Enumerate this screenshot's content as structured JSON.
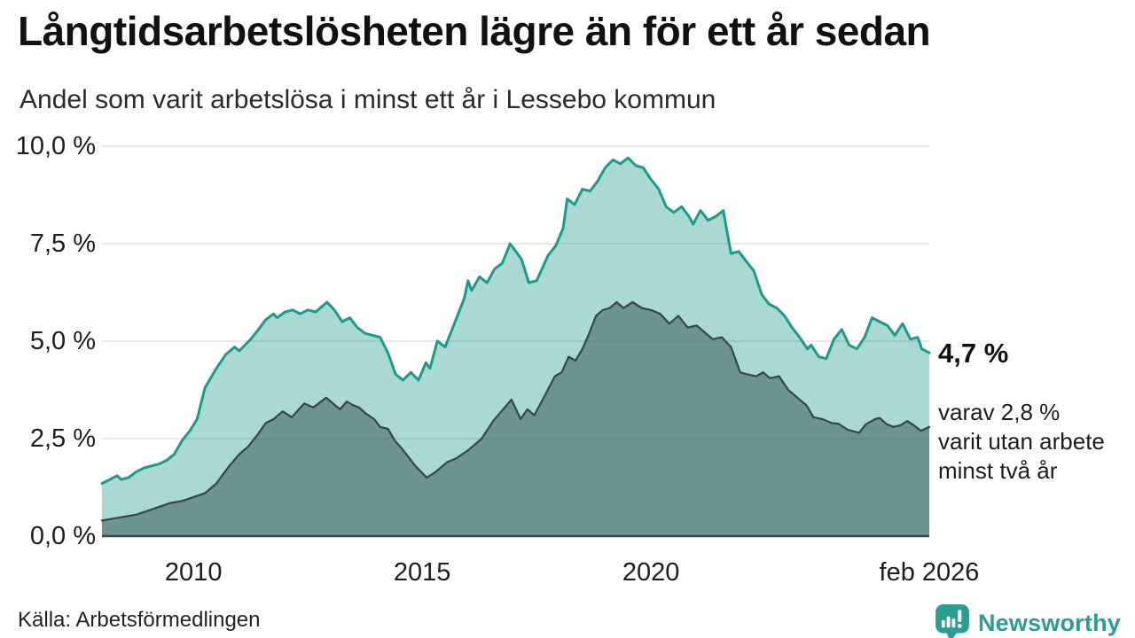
{
  "header": {
    "title": "Långtidsarbetslösheten lägre än för ett år sedan",
    "subtitle": "Andel som varit arbetslösa i minst ett år i Lessebo kommun"
  },
  "chart_data": {
    "type": "area",
    "title": "Långtidsarbetslösheten lägre än för ett år sedan",
    "subtitle": "Andel som varit arbetslösa i minst ett år i Lessebo kommun",
    "x_unit": "decimal_year",
    "x_range": [
      2008.0,
      2026.083
    ],
    "ylim": [
      0,
      10
    ],
    "grid": true,
    "legend_position": "none",
    "grid_color": "#e0e0e4",
    "axis_line_color": "#3a464c",
    "y_ticks": [
      {
        "value": 0,
        "label": "0,0 %"
      },
      {
        "value": 2.5,
        "label": "2,5 %"
      },
      {
        "value": 5,
        "label": "5,0 %"
      },
      {
        "value": 7.5,
        "label": "7,5 %"
      },
      {
        "value": 10,
        "label": "10,0 %"
      }
    ],
    "x_ticks": [
      {
        "value": 2010,
        "label": "2010"
      },
      {
        "value": 2015,
        "label": "2015"
      },
      {
        "value": 2020,
        "label": "2020"
      },
      {
        "value": 2026.083,
        "label": "feb 2026"
      }
    ],
    "series": [
      {
        "name": "Arbetslösa minst ett år",
        "stroke": "#1d9a8b",
        "stroke_width": 3,
        "fill": "rgba(42,157,143,0.40)",
        "x": [
          2008.0,
          2008.17,
          2008.33,
          2008.42,
          2008.58,
          2008.75,
          2008.92,
          2009.08,
          2009.25,
          2009.42,
          2009.58,
          2009.75,
          2009.92,
          2010.08,
          2010.25,
          2010.5,
          2010.7,
          2010.9,
          2011.0,
          2011.25,
          2011.42,
          2011.58,
          2011.75,
          2011.83,
          2012.0,
          2012.17,
          2012.33,
          2012.5,
          2012.67,
          2012.92,
          2013.08,
          2013.25,
          2013.42,
          2013.58,
          2013.75,
          2013.92,
          2014.08,
          2014.25,
          2014.42,
          2014.58,
          2014.75,
          2014.92,
          2015.08,
          2015.17,
          2015.33,
          2015.5,
          2015.67,
          2015.92,
          2016.0,
          2016.08,
          2016.25,
          2016.42,
          2016.58,
          2016.75,
          2016.92,
          2017.08,
          2017.17,
          2017.33,
          2017.5,
          2017.75,
          2017.92,
          2018.08,
          2018.17,
          2018.33,
          2018.5,
          2018.67,
          2018.83,
          2019.0,
          2019.17,
          2019.33,
          2019.5,
          2019.67,
          2019.83,
          2020.0,
          2020.17,
          2020.33,
          2020.5,
          2020.67,
          2020.83,
          2020.92,
          2021.08,
          2021.25,
          2021.42,
          2021.58,
          2021.75,
          2021.92,
          2022.08,
          2022.25,
          2022.42,
          2022.58,
          2022.75,
          2022.92,
          2023.08,
          2023.25,
          2023.42,
          2023.5,
          2023.67,
          2023.83,
          2024.0,
          2024.17,
          2024.33,
          2024.5,
          2024.67,
          2024.83,
          2025.0,
          2025.17,
          2025.33,
          2025.5,
          2025.67,
          2025.83,
          2025.92,
          2026.083
        ],
        "y": [
          1.35,
          1.45,
          1.55,
          1.45,
          1.5,
          1.65,
          1.75,
          1.8,
          1.85,
          1.95,
          2.1,
          2.45,
          2.7,
          3.0,
          3.8,
          4.3,
          4.65,
          4.85,
          4.75,
          5.05,
          5.3,
          5.55,
          5.7,
          5.6,
          5.75,
          5.8,
          5.7,
          5.8,
          5.75,
          6.0,
          5.8,
          5.5,
          5.6,
          5.35,
          5.2,
          5.15,
          5.1,
          4.7,
          4.15,
          4.0,
          4.2,
          4.0,
          4.45,
          4.3,
          5.0,
          4.85,
          5.35,
          6.1,
          6.55,
          6.3,
          6.65,
          6.5,
          6.85,
          7.0,
          7.5,
          7.25,
          7.1,
          6.5,
          6.55,
          7.2,
          7.45,
          7.9,
          8.65,
          8.5,
          8.9,
          8.85,
          9.1,
          9.45,
          9.65,
          9.55,
          9.7,
          9.5,
          9.45,
          9.15,
          8.9,
          8.45,
          8.3,
          8.45,
          8.2,
          8.0,
          8.35,
          8.1,
          8.2,
          8.35,
          7.25,
          7.3,
          7.05,
          6.8,
          6.2,
          5.95,
          5.85,
          5.65,
          5.35,
          5.1,
          4.8,
          4.9,
          4.6,
          4.55,
          5.05,
          5.3,
          4.9,
          4.8,
          5.1,
          5.6,
          5.5,
          5.4,
          5.15,
          5.45,
          5.05,
          5.1,
          4.8,
          4.7
        ],
        "end_value_label": "4,7 %"
      },
      {
        "name": "Arbetslösa minst två år",
        "stroke": "#37474d",
        "stroke_width": 2.25,
        "fill": "rgba(47,79,74,0.50)",
        "x": [
          2008.0,
          2008.25,
          2008.5,
          2008.75,
          2009.0,
          2009.25,
          2009.5,
          2009.75,
          2010.0,
          2010.25,
          2010.5,
          2010.75,
          2011.0,
          2011.2,
          2011.4,
          2011.58,
          2011.75,
          2011.95,
          2012.15,
          2012.42,
          2012.62,
          2012.9,
          2013.05,
          2013.2,
          2013.35,
          2013.5,
          2013.62,
          2013.76,
          2013.95,
          2014.08,
          2014.25,
          2014.4,
          2014.55,
          2014.65,
          2014.85,
          2015.1,
          2015.3,
          2015.55,
          2015.75,
          2016.0,
          2016.3,
          2016.55,
          2016.95,
          2017.15,
          2017.3,
          2017.45,
          2017.7,
          2017.9,
          2018.05,
          2018.2,
          2018.35,
          2018.5,
          2018.65,
          2018.8,
          2018.95,
          2019.1,
          2019.25,
          2019.4,
          2019.6,
          2019.8,
          2020.0,
          2020.2,
          2020.4,
          2020.6,
          2020.8,
          2021.0,
          2021.2,
          2021.35,
          2021.55,
          2021.75,
          2021.95,
          2022.1,
          2022.3,
          2022.45,
          2022.6,
          2022.8,
          2023.0,
          2023.2,
          2023.4,
          2023.55,
          2023.75,
          2023.95,
          2024.1,
          2024.3,
          2024.55,
          2024.7,
          2024.9,
          2025.0,
          2025.15,
          2025.3,
          2025.45,
          2025.6,
          2025.75,
          2025.9,
          2026.083
        ],
        "y": [
          0.4,
          0.45,
          0.5,
          0.55,
          0.65,
          0.75,
          0.85,
          0.9,
          1.0,
          1.1,
          1.35,
          1.75,
          2.1,
          2.3,
          2.6,
          2.9,
          3.0,
          3.2,
          3.05,
          3.4,
          3.3,
          3.55,
          3.4,
          3.25,
          3.45,
          3.35,
          3.3,
          3.15,
          3.0,
          2.8,
          2.75,
          2.45,
          2.25,
          2.1,
          1.8,
          1.5,
          1.65,
          1.9,
          2.0,
          2.2,
          2.5,
          2.95,
          3.5,
          3.0,
          3.25,
          3.1,
          3.65,
          4.1,
          4.2,
          4.6,
          4.5,
          4.8,
          5.2,
          5.65,
          5.8,
          5.85,
          6.0,
          5.85,
          6.0,
          5.85,
          5.8,
          5.7,
          5.45,
          5.65,
          5.35,
          5.4,
          5.2,
          5.05,
          5.1,
          4.85,
          4.2,
          4.15,
          4.1,
          4.2,
          4.05,
          4.1,
          3.75,
          3.55,
          3.35,
          3.05,
          3.0,
          2.9,
          2.88,
          2.73,
          2.65,
          2.87,
          3.0,
          3.03,
          2.87,
          2.8,
          2.84,
          2.95,
          2.84,
          2.7,
          2.8
        ],
        "end_value_label": "2,8 %"
      }
    ]
  },
  "annotations": {
    "latest_total": "4,7 %",
    "subset_note": "varav 2,8 %\nvarit utan arbete\nminst två år"
  },
  "source": {
    "label": "Källa: Arbetsförmedlingen"
  },
  "branding": {
    "name": "Newsworthy",
    "color": "#2d9c91",
    "icon": "newsworthy-bubble-chart-icon"
  }
}
